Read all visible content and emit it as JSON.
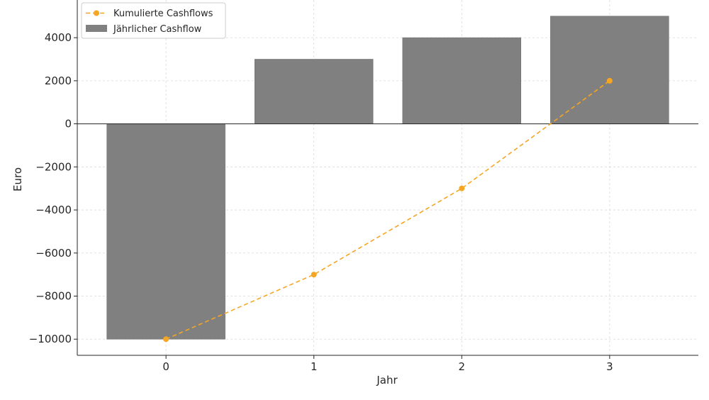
{
  "chart_data": {
    "type": "bar",
    "categories": [
      "0",
      "1",
      "2",
      "3"
    ],
    "x": [
      0,
      1,
      2,
      3
    ],
    "series": [
      {
        "name": "Kumulierte Cashflows",
        "type": "line",
        "values": [
          -10000,
          -7000,
          -3000,
          2000
        ],
        "color": "#f5a623",
        "style": "dashed",
        "marker": "circle"
      },
      {
        "name": "Jährlicher Cashflow",
        "type": "bar",
        "values": [
          -10000,
          3000,
          4000,
          5000
        ],
        "color": "#808080"
      }
    ],
    "title": "",
    "xlabel": "Jahr",
    "ylabel": "Euro",
    "xlim": [
      -0.6,
      3.6
    ],
    "ylim": [
      -10750,
      5750
    ],
    "yticks": [
      -10000,
      -8000,
      -6000,
      -4000,
      -2000,
      0,
      2000,
      4000
    ],
    "ytick_labels": [
      "−10000",
      "−8000",
      "−6000",
      "−4000",
      "−2000",
      "0",
      "2000",
      "4000"
    ],
    "xticks": [
      0,
      1,
      2,
      3
    ],
    "xtick_labels": [
      "0",
      "1",
      "2",
      "3"
    ],
    "grid": true,
    "zero_line": true,
    "legend": "top-left"
  }
}
